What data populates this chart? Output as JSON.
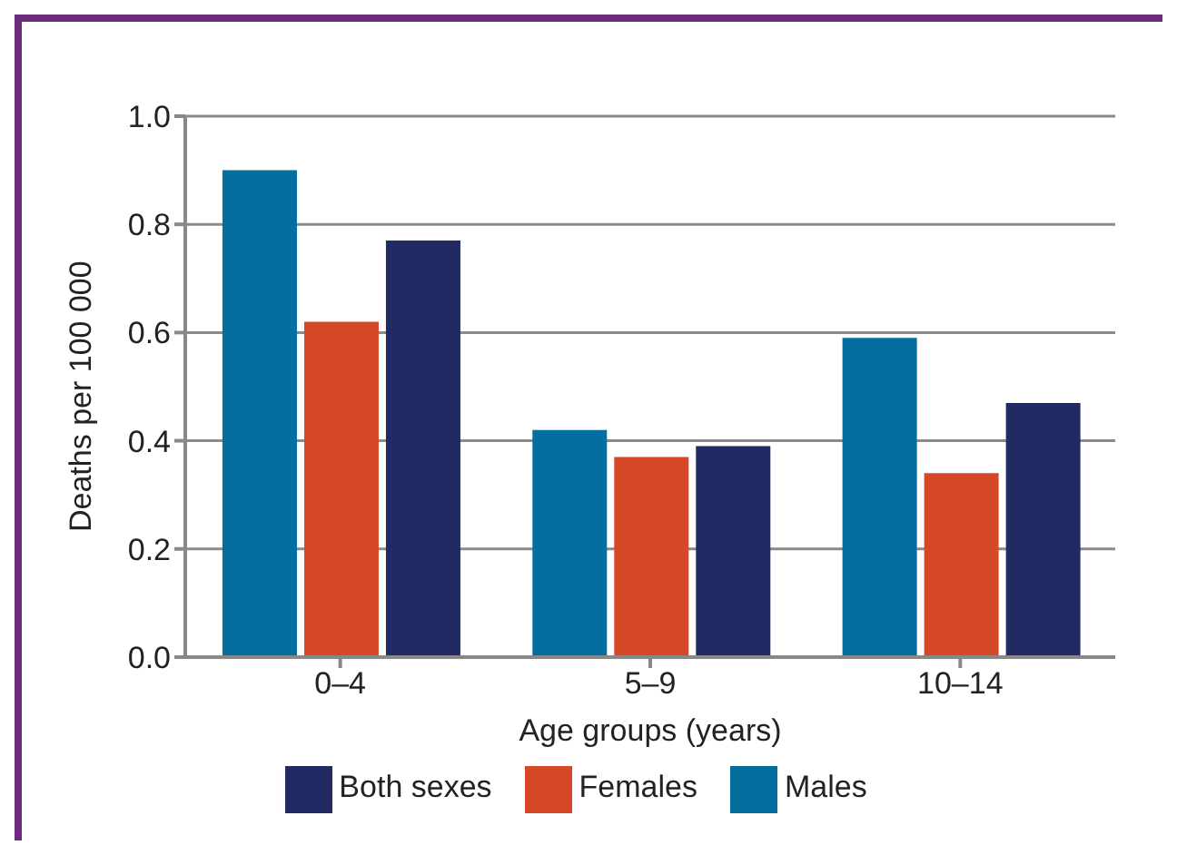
{
  "chart_data": {
    "type": "bar",
    "xlabel": "Age groups (years)",
    "ylabel": "Deaths per  100 000",
    "categories": [
      "0–4",
      "5–9",
      "10–14"
    ],
    "series": [
      {
        "name": "Males",
        "color": "#046e9f",
        "values": [
          0.9,
          0.42,
          0.59
        ]
      },
      {
        "name": "Females",
        "color": "#d64826",
        "values": [
          0.62,
          0.37,
          0.34
        ]
      },
      {
        "name": "Both sexes",
        "color": "#212a62",
        "values": [
          0.77,
          0.39,
          0.47
        ]
      }
    ],
    "ylim": [
      0,
      1.0
    ],
    "yticks": [
      {
        "value": 0,
        "label": "0.0"
      },
      {
        "value": 0.2,
        "label": "0.2"
      },
      {
        "value": 0.4,
        "label": "0.4"
      },
      {
        "value": 0.6,
        "label": "0.6"
      },
      {
        "value": 0.8,
        "label": "0.8"
      },
      {
        "value": 1.0,
        "label": "1.0"
      }
    ],
    "grid": "y",
    "legend": "bottom"
  }
}
